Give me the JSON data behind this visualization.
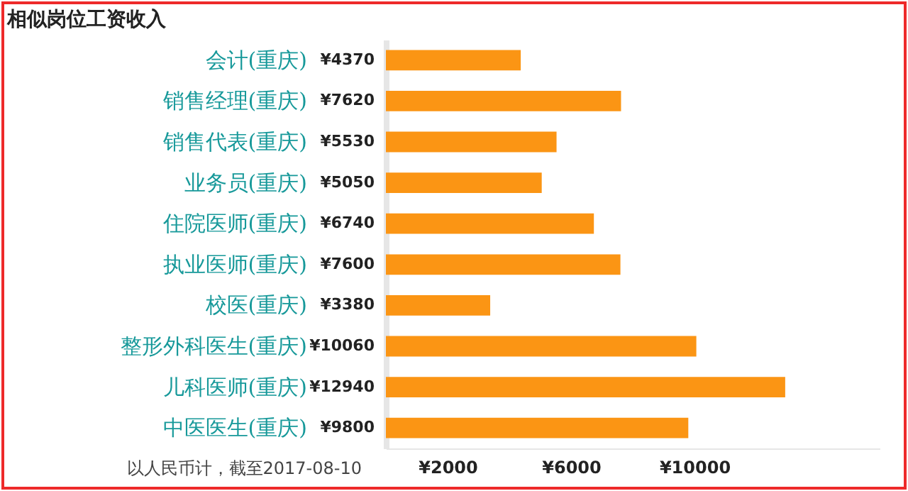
{
  "chart_data": {
    "type": "bar",
    "orientation": "horizontal",
    "title": "相似岗位工资收入",
    "categories": [
      "会计(重庆)",
      "销售经理(重庆)",
      "销售代表(重庆)",
      "业务员(重庆)",
      "住院医师(重庆)",
      "执业医师(重庆)",
      "校医(重庆)",
      "整形外科医生(重庆)",
      "儿科医师(重庆)",
      "中医医生(重庆)"
    ],
    "values": [
      4370,
      7620,
      5530,
      5050,
      6740,
      7600,
      3380,
      10060,
      12940,
      9800
    ],
    "value_labels": [
      "¥4370",
      "¥7620",
      "¥5530",
      "¥5050",
      "¥6740",
      "¥7600",
      "¥3380",
      "¥10060",
      "¥12940",
      "¥9800"
    ],
    "color": "#fb9514",
    "xlim": [
      0,
      16000
    ],
    "xticks": [
      {
        "value": 2000,
        "label": "¥2000"
      },
      {
        "value": 6000,
        "label": "¥6000"
      },
      {
        "value": 10000,
        "label": "¥10000"
      }
    ],
    "grid": false,
    "annotations": [
      "以人民币计，截至2017-08-10"
    ]
  }
}
